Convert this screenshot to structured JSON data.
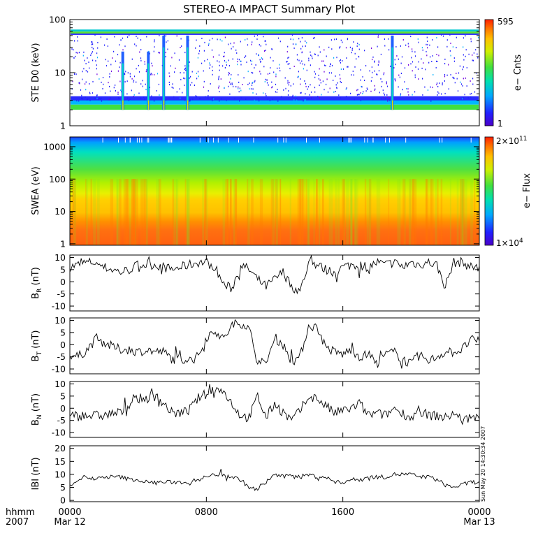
{
  "title": "STEREO-A IMPACT Summary Plot",
  "timestamp_note": "Sun May 20 14:30:34 2007",
  "x_axis": {
    "corner_labels": [
      "hhmm",
      "2007"
    ],
    "ticks": [
      {
        "hours": 0,
        "time": "0000",
        "date": "Mar 12"
      },
      {
        "hours": 8,
        "time": "0800",
        "date": ""
      },
      {
        "hours": 16,
        "time": "1600",
        "date": ""
      },
      {
        "hours": 24,
        "time": "0000",
        "date": "Mar 13"
      }
    ],
    "range_hours": [
      0,
      24
    ]
  },
  "chart_data": [
    {
      "type": "heatmap",
      "ylabel": "STE D0 (keV)",
      "y_scale": "log",
      "ylim": [
        1,
        100
      ],
      "y_ticks": [
        "1",
        "10",
        "100"
      ],
      "colorbar": {
        "label": "e− Cnts",
        "min_label": "1",
        "max_label": "595",
        "min": 1,
        "max": 595
      },
      "features": {
        "background_band_keV": [
          2,
          3
        ],
        "upper_band_keV": [
          53,
          63
        ],
        "spike_times_hours": [
          3.1,
          4.6,
          5.5,
          6.9,
          18.9
        ]
      }
    },
    {
      "type": "heatmap",
      "ylabel": "SWEA (eV)",
      "y_scale": "log",
      "ylim": [
        0.9,
        2000
      ],
      "y_ticks": [
        "1",
        "10",
        "100",
        "1000"
      ],
      "colorbar": {
        "label": "e− Flux",
        "min_base": "1×10",
        "min_exp": "4",
        "max_base": "2×10",
        "max_exp": "11",
        "min": 10000,
        "max": 200000000000
      }
    },
    {
      "type": "line",
      "ylabel_main": "B",
      "ylabel_sub": "R",
      "ylabel_unit": " (nT)",
      "ylim": [
        -12,
        11
      ],
      "y_ticks": [
        -10,
        -5,
        0,
        5,
        10
      ],
      "x": [
        0,
        0.5,
        1,
        1.5,
        2,
        2.5,
        3,
        3.5,
        4,
        4.5,
        5,
        5.5,
        6,
        6.5,
        7,
        7.5,
        8,
        8.5,
        9,
        9.5,
        10,
        10.5,
        11,
        11.5,
        12,
        12.5,
        13,
        13.5,
        14,
        14.5,
        15,
        15.5,
        16,
        16.5,
        17,
        17.5,
        18,
        18.5,
        19,
        19.5,
        20,
        20.5,
        21,
        21.5,
        22,
        22.5,
        23,
        23.5,
        24
      ],
      "values": [
        6,
        7,
        8,
        8,
        6,
        5,
        4,
        5,
        7,
        7,
        7,
        6,
        5,
        6,
        7,
        8,
        8,
        6,
        -1,
        -3,
        7,
        5,
        1,
        -2,
        1,
        4,
        -2,
        -4,
        8,
        7,
        5,
        4,
        6,
        7,
        7,
        6,
        8,
        7,
        8,
        6,
        8,
        7,
        8,
        7,
        -2,
        8,
        8,
        6,
        6
      ]
    },
    {
      "type": "line",
      "ylabel_main": "B",
      "ylabel_sub": "T",
      "ylabel_unit": " (nT)",
      "ylim": [
        -12,
        11
      ],
      "y_ticks": [
        -10,
        -5,
        0,
        5,
        10
      ],
      "x": [
        0,
        0.5,
        1,
        1.5,
        2,
        2.5,
        3,
        3.5,
        4,
        4.5,
        5,
        5.5,
        6,
        6.5,
        7,
        7.5,
        8,
        8.5,
        9,
        9.5,
        10,
        10.5,
        11,
        11.5,
        12,
        12.5,
        13,
        13.5,
        14,
        14.5,
        15,
        15.5,
        16,
        16.5,
        17,
        17.5,
        18,
        18.5,
        19,
        19.5,
        20,
        20.5,
        21,
        21.5,
        22,
        22.5,
        23,
        23.5,
        24
      ],
      "values": [
        -4,
        -5,
        -2,
        2,
        1,
        -1,
        -2,
        -2,
        -3,
        -2,
        -3,
        -3,
        -6,
        -6,
        -6,
        -5,
        3,
        6,
        2,
        8,
        9,
        7,
        -7,
        -8,
        3,
        0,
        -7,
        -5,
        8,
        7,
        -1,
        -3,
        -4,
        -2,
        -5,
        -4,
        -8,
        -4,
        -3,
        -6,
        -8,
        -4,
        -7,
        -5,
        -3,
        -3,
        -2,
        2,
        1
      ]
    },
    {
      "type": "line",
      "ylabel_main": "B",
      "ylabel_sub": "N",
      "ylabel_unit": " (nT)",
      "ylim": [
        -12,
        11
      ],
      "y_ticks": [
        -10,
        -5,
        0,
        5,
        10
      ],
      "x": [
        0,
        0.5,
        1,
        1.5,
        2,
        2.5,
        3,
        3.5,
        4,
        4.5,
        5,
        5.5,
        6,
        6.5,
        7,
        7.5,
        8,
        8.5,
        9,
        9.5,
        10,
        10.5,
        11,
        11.5,
        12,
        12.5,
        13,
        13.5,
        14,
        14.5,
        15,
        15.5,
        16,
        16.5,
        17,
        17.5,
        18,
        18.5,
        19,
        19.5,
        20,
        20.5,
        21,
        21.5,
        22,
        22.5,
        23,
        23.5,
        24
      ],
      "values": [
        -2,
        -3,
        -3,
        -3,
        -3,
        -2,
        -2,
        2,
        4,
        4,
        5,
        2,
        -2,
        -2,
        -1,
        4,
        6,
        8,
        7,
        2,
        -3,
        -4,
        5,
        -4,
        2,
        -2,
        -5,
        -1,
        5,
        4,
        1,
        -2,
        -1,
        0,
        2,
        -3,
        -2,
        -3,
        0,
        -2,
        -4,
        -1,
        -3,
        -3,
        -4,
        -2,
        -5,
        -4,
        -4
      ]
    },
    {
      "type": "line",
      "ylabel": "IBI (nT)",
      "ylim": [
        -0.5,
        21
      ],
      "y_ticks": [
        0,
        5,
        10,
        15,
        20
      ],
      "x": [
        0,
        0.5,
        1,
        1.5,
        2,
        2.5,
        3,
        3.5,
        4,
        4.5,
        5,
        5.5,
        6,
        6.5,
        7,
        7.5,
        8,
        8.5,
        9,
        9.5,
        10,
        10.5,
        11,
        11.5,
        12,
        12.5,
        13,
        13.5,
        14,
        14.5,
        15,
        15.5,
        16,
        16.5,
        17,
        17.5,
        18,
        18.5,
        19,
        19.5,
        20,
        20.5,
        21,
        21.5,
        22,
        22.5,
        23,
        23.5,
        24
      ],
      "values": [
        6,
        8,
        9,
        8,
        9,
        9,
        9,
        8,
        8,
        7,
        7,
        7,
        7,
        7,
        7,
        8,
        9,
        10,
        10,
        9,
        8,
        5,
        4,
        7,
        10,
        9,
        10,
        9,
        10,
        9,
        9,
        7,
        7,
        8,
        8,
        9,
        9,
        9,
        10,
        10,
        10,
        9,
        9,
        8,
        6,
        5,
        6,
        7,
        7
      ]
    }
  ]
}
